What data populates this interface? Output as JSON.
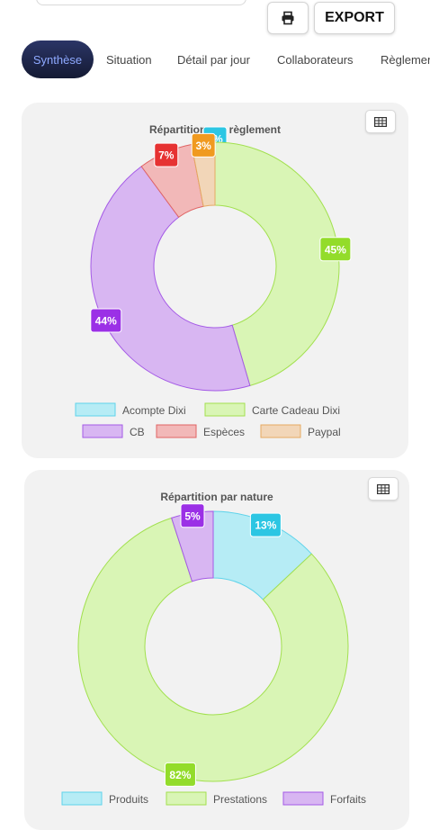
{
  "toolbar": {
    "print_icon": "printer-icon",
    "export_label": "EXPORT"
  },
  "tabs": [
    {
      "label": "Synthèse",
      "active": true
    },
    {
      "label": "Situation"
    },
    {
      "label": "Détail par jour"
    },
    {
      "label": "Collaborateurs"
    },
    {
      "label": "Règlements"
    }
  ],
  "colors": {
    "active_tab_bg": "#1b2144",
    "active_tab_text": "#8ea9ff"
  },
  "chart_data": [
    {
      "type": "pie",
      "subtype": "donut",
      "title": "Répartition par règlement",
      "table_icon": "table-icon",
      "slices": [
        {
          "name": "Acompte Dixi",
          "value": 0,
          "label": "0%",
          "fill": "#b6ecf5",
          "stroke": "#5fd3ea",
          "badge": "#2cc6e3"
        },
        {
          "name": "Carte Cadeau Dixi",
          "value": 45,
          "label": "45%",
          "fill": "#d9f5b5",
          "stroke": "#a2e04f",
          "badge": "#93dc2a"
        },
        {
          "name": "CB",
          "value": 44,
          "label": "44%",
          "fill": "#d8b6f2",
          "stroke": "#a45ae6",
          "badge": "#9b30e6"
        },
        {
          "name": "Espèces",
          "value": 7,
          "label": "7%",
          "fill": "#f2b8b8",
          "stroke": "#e06464",
          "badge": "#e63232"
        },
        {
          "name": "Paypal",
          "value": 3,
          "label": "3%",
          "fill": "#f2d6b8",
          "stroke": "#e5a962",
          "badge": "#f09a20"
        }
      ],
      "legend": [
        {
          "name": "Acompte Dixi"
        },
        {
          "name": "Carte Cadeau Dixi"
        },
        {
          "name": "CB"
        },
        {
          "name": "Espèces"
        },
        {
          "name": "Paypal"
        }
      ],
      "legend_position": "bottom"
    },
    {
      "type": "pie",
      "subtype": "donut",
      "title": "Répartition par nature",
      "table_icon": "table-icon",
      "slices": [
        {
          "name": "Produits",
          "value": 13,
          "label": "13%",
          "fill": "#b6ecf5",
          "stroke": "#5fd3ea",
          "badge": "#2cc6e3"
        },
        {
          "name": "Prestations",
          "value": 82,
          "label": "82%",
          "fill": "#d9f5b5",
          "stroke": "#a2e04f",
          "badge": "#93dc2a"
        },
        {
          "name": "Forfaits",
          "value": 5,
          "label": "5%",
          "fill": "#d8b6f2",
          "stroke": "#a45ae6",
          "badge": "#9b30e6"
        }
      ],
      "legend": [
        {
          "name": "Produits"
        },
        {
          "name": "Prestations"
        },
        {
          "name": "Forfaits"
        }
      ],
      "legend_position": "bottom"
    }
  ]
}
